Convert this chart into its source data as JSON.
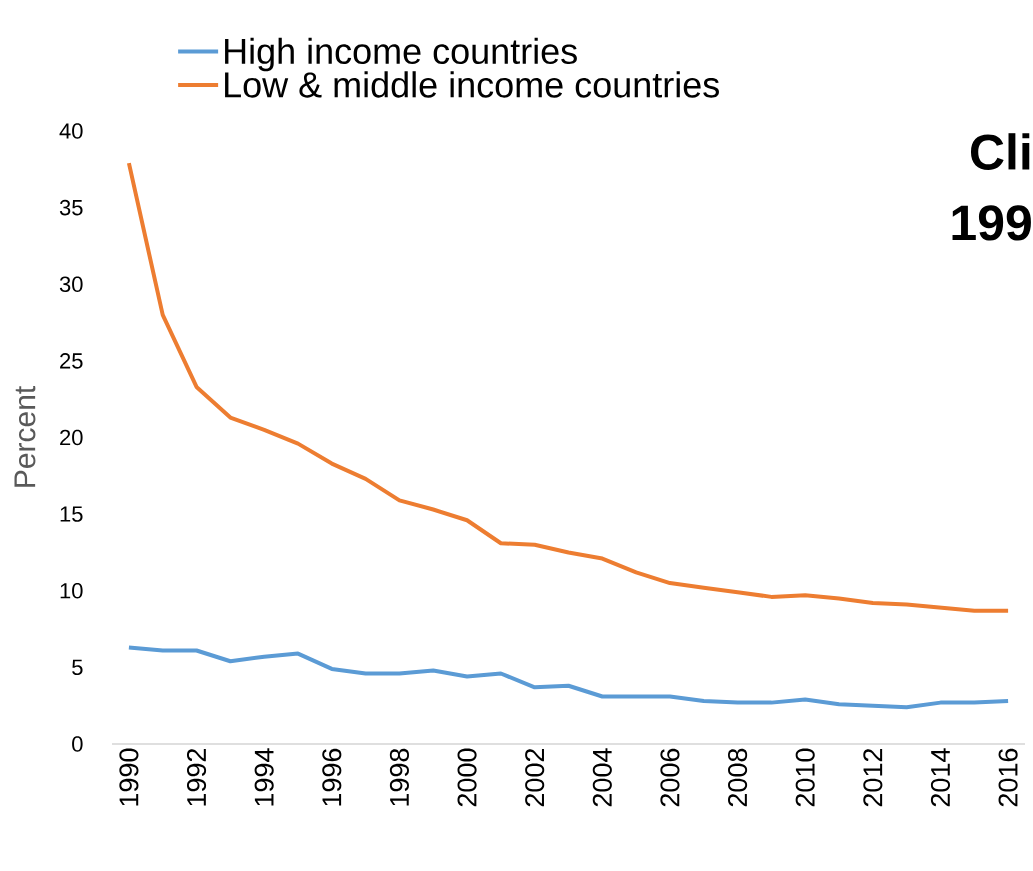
{
  "chart_data": {
    "type": "line",
    "ylabel": "Percent",
    "x": [
      1990,
      1991,
      1992,
      1993,
      1994,
      1995,
      1996,
      1997,
      1998,
      1999,
      2000,
      2001,
      2002,
      2003,
      2004,
      2005,
      2006,
      2007,
      2008,
      2009,
      2010,
      2011,
      2012,
      2013,
      2014,
      2015,
      2016
    ],
    "xlim": [
      1989.5,
      2016.5
    ],
    "xticks": [
      1990,
      1992,
      1994,
      1996,
      1998,
      2000,
      2002,
      2004,
      2006,
      2008,
      2010,
      2012,
      2014,
      2016
    ],
    "ylim": [
      0,
      40
    ],
    "yticks": [
      0,
      5,
      10,
      15,
      20,
      25,
      30,
      35,
      40
    ],
    "grid": false,
    "legend": "top",
    "marker": "none",
    "line_style": "solid",
    "annotations": [
      "Cli",
      "199"
    ],
    "series": [
      {
        "name": "High income countries",
        "color": "#5b9bd5",
        "values": [
          6.3,
          6.1,
          6.1,
          5.4,
          5.7,
          5.9,
          4.9,
          4.6,
          4.6,
          4.8,
          4.4,
          4.6,
          3.7,
          3.8,
          3.1,
          3.1,
          3.1,
          2.8,
          2.7,
          2.7,
          2.9,
          2.6,
          2.5,
          2.4,
          2.7,
          2.7,
          2.8
        ]
      },
      {
        "name": "Low & middle income countries",
        "color": "#ed7d31",
        "values": [
          37.9,
          28.0,
          23.3,
          21.3,
          20.5,
          19.6,
          18.3,
          17.3,
          15.9,
          15.3,
          14.6,
          13.1,
          13.0,
          12.5,
          12.1,
          11.2,
          10.5,
          10.2,
          9.9,
          9.6,
          9.7,
          9.5,
          9.2,
          9.1,
          8.9,
          8.7,
          8.7
        ]
      }
    ]
  }
}
